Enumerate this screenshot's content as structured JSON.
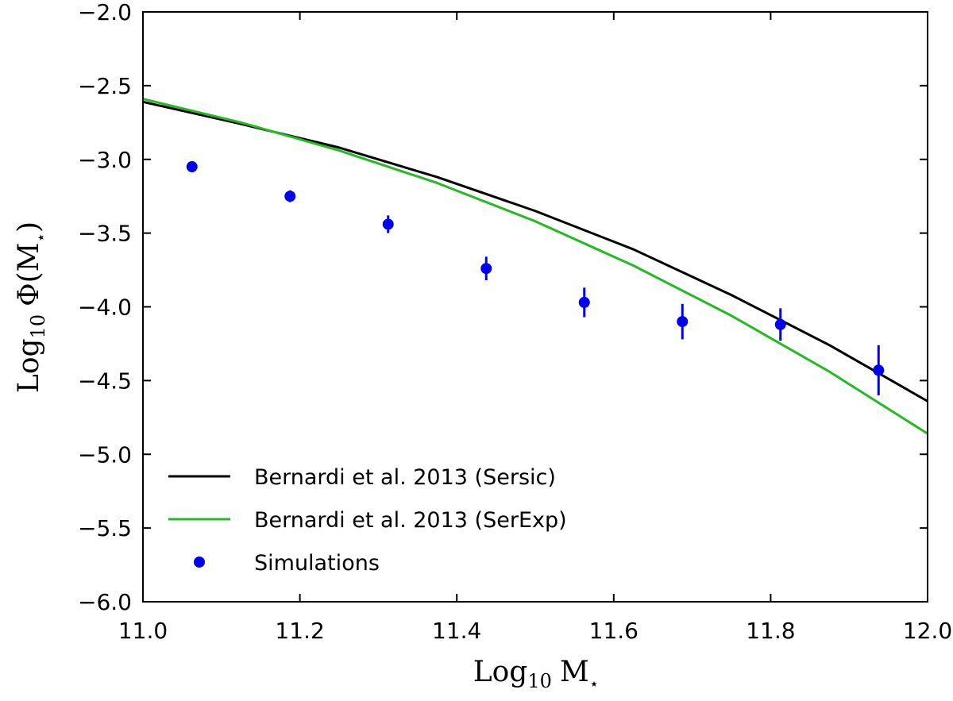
{
  "chart_data": {
    "type": "scatter",
    "title": "",
    "xlabel": "Log",
    "xlabel_sub": "10",
    "xlabel_tail": "M",
    "xlabel_sup": "⋆",
    "ylabel": "Log",
    "ylabel_sub": "10",
    "ylabel_tail": "Φ(M",
    "ylabel_sup": "⋆",
    "ylabel_close": ")",
    "xlim": [
      11.0,
      12.0
    ],
    "ylim": [
      -6.0,
      -2.0
    ],
    "xticks": [
      11.0,
      11.2,
      11.4,
      11.6,
      11.8,
      12.0
    ],
    "xtick_labels": [
      "11.0",
      "11.2",
      "11.4",
      "11.6",
      "11.8",
      "12.0"
    ],
    "yticks": [
      -6.0,
      -5.5,
      -5.0,
      -4.5,
      -4.0,
      -3.5,
      -3.0,
      -2.5,
      -2.0
    ],
    "ytick_labels": [
      "−6.0",
      "−5.5",
      "−5.0",
      "−4.5",
      "−4.0",
      "−3.5",
      "−3.0",
      "−2.5",
      "−2.0"
    ],
    "grid": false,
    "legend_position": "bottom-left",
    "series": [
      {
        "name": "Bernardi et al. 2013 (Sersic)",
        "kind": "line",
        "color": "#000000",
        "x": [
          11.0,
          11.125,
          11.25,
          11.375,
          11.5,
          11.625,
          11.75,
          11.875,
          12.0
        ],
        "y": [
          -2.61,
          -2.76,
          -2.92,
          -3.12,
          -3.35,
          -3.61,
          -3.92,
          -4.26,
          -4.64
        ]
      },
      {
        "name": "Bernardi et al. 2013 (SerExp)",
        "kind": "line",
        "color": "#22bb22",
        "x": [
          11.0,
          11.125,
          11.25,
          11.375,
          11.5,
          11.625,
          11.75,
          11.875,
          12.0
        ],
        "y": [
          -2.59,
          -2.75,
          -2.94,
          -3.16,
          -3.42,
          -3.72,
          -4.06,
          -4.44,
          -4.86
        ]
      },
      {
        "name": "Simulations",
        "kind": "points",
        "color": "#0000ee",
        "x": [
          11.0625,
          11.1875,
          11.3125,
          11.4375,
          11.5625,
          11.6875,
          11.8125,
          11.9375
        ],
        "y": [
          -3.05,
          -3.25,
          -3.44,
          -3.74,
          -3.97,
          -4.1,
          -4.12,
          -4.43
        ],
        "yerr": [
          0.02,
          0.04,
          0.06,
          0.08,
          0.1,
          0.12,
          0.11,
          0.17
        ]
      }
    ]
  }
}
